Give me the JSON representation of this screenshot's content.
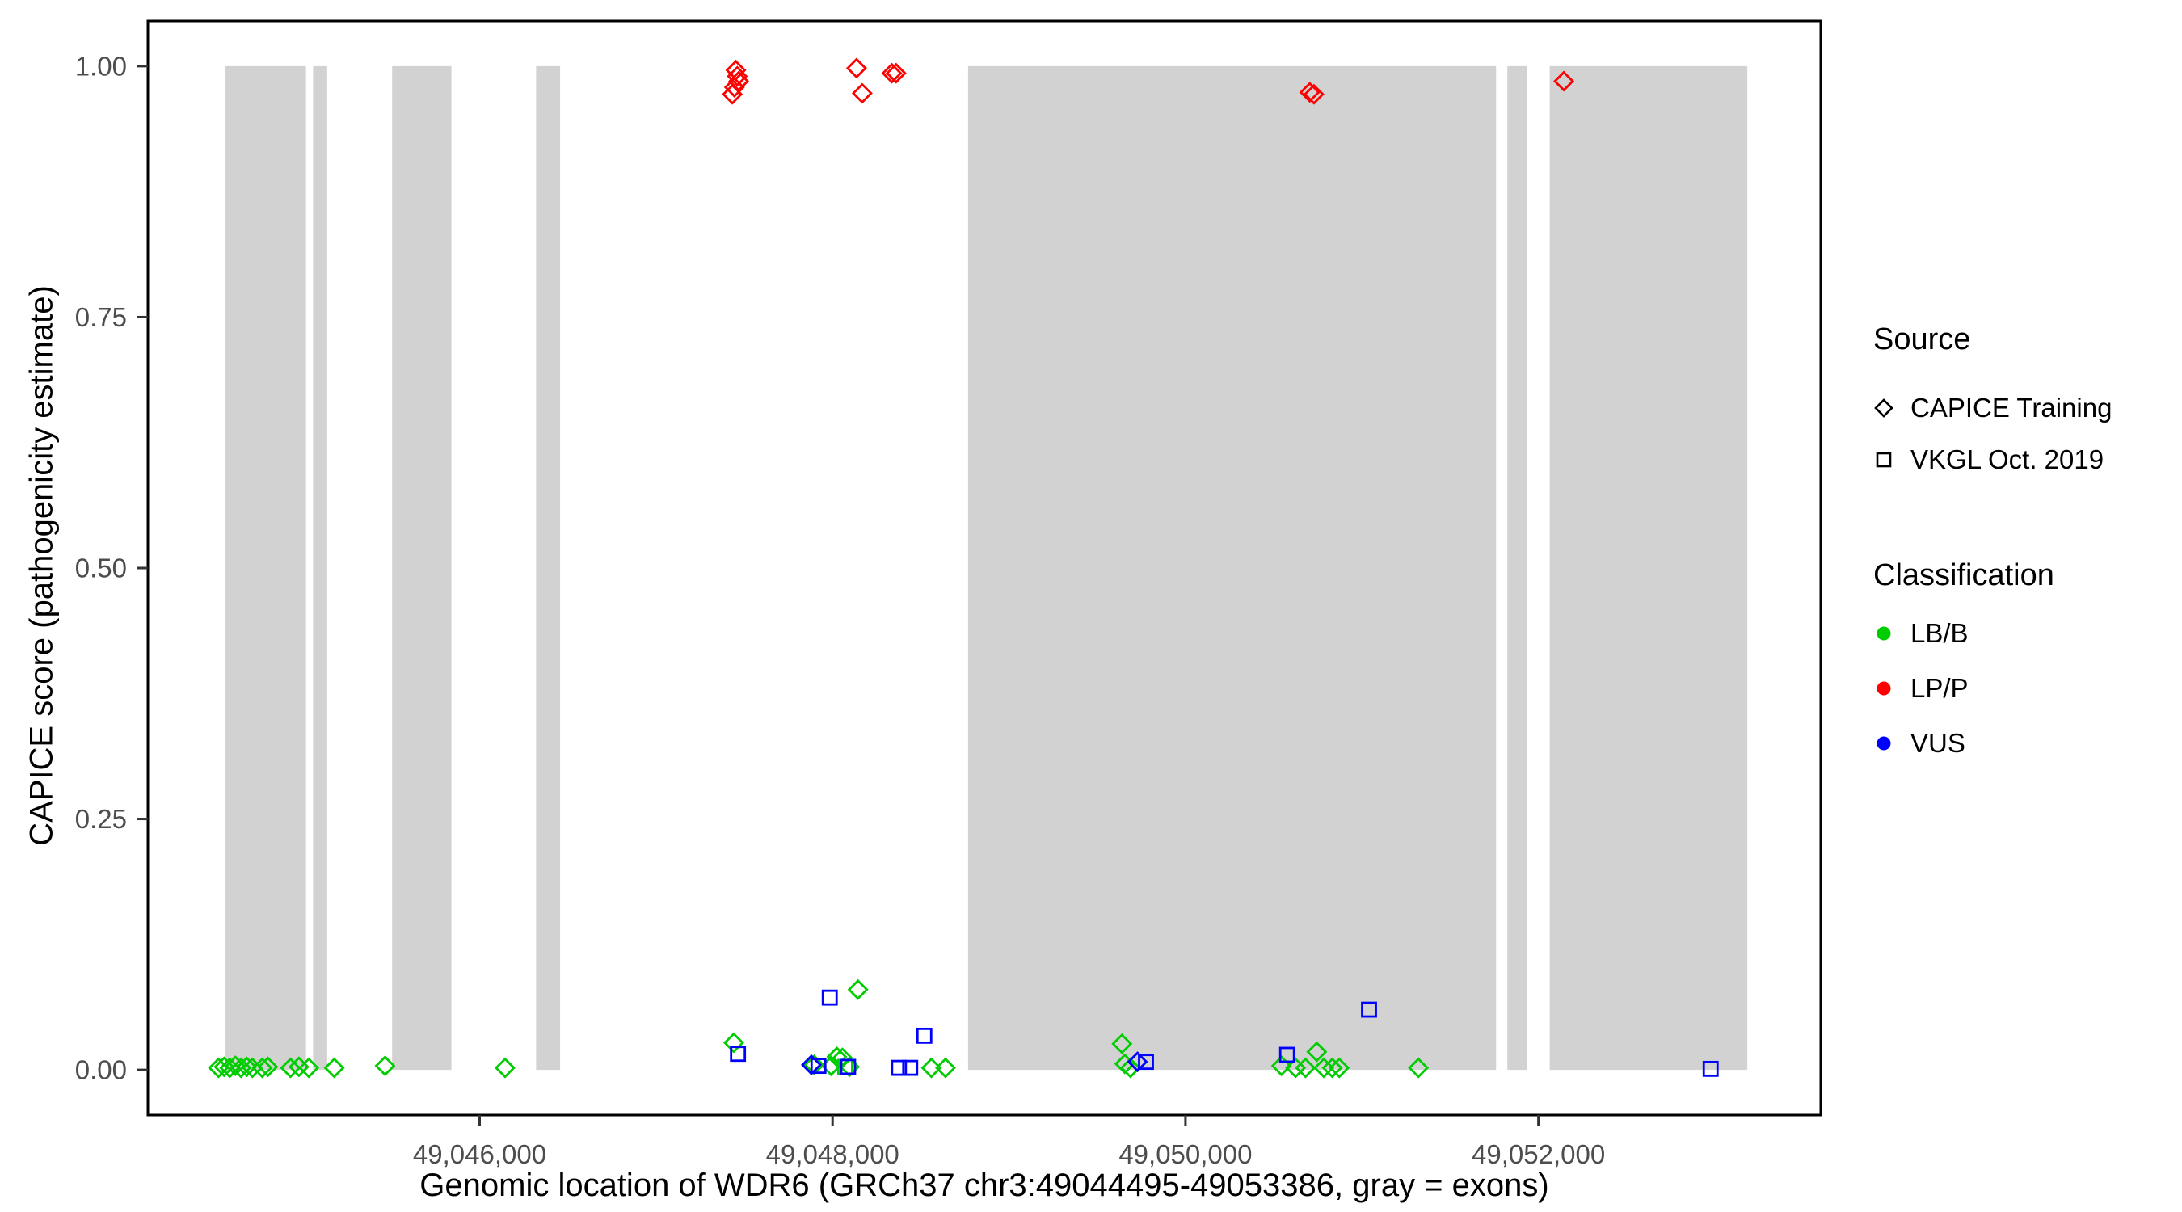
{
  "colors": {
    "LB/B": "#00CD00",
    "LP/P": "#FF0000",
    "VUS": "#0000FF",
    "exon": "#D2D2D2",
    "panel_border": "#000000",
    "tick_label": "#4D4D4D"
  },
  "legend": {
    "source": {
      "title": "Source",
      "items": [
        {
          "label": "CAPICE Training",
          "shape": "diamond"
        },
        {
          "label": "VKGL Oct. 2019",
          "shape": "square"
        }
      ]
    },
    "classification": {
      "title": "Classification",
      "items": [
        {
          "label": "LB/B",
          "color": "#00CD00"
        },
        {
          "label": "LP/P",
          "color": "#FF0000"
        },
        {
          "label": "VUS",
          "color": "#0000FF"
        }
      ]
    }
  },
  "chart_data": {
    "type": "scatter",
    "title": "",
    "xlabel": "Genomic location of WDR6 (GRCh37 chr3:49044495-49053386, gray = exons)",
    "ylabel": "CAPICE score (pathogenicity estimate)",
    "xlim": [
      49044120,
      49053600
    ],
    "ylim": [
      -0.045,
      1.045
    ],
    "grid": false,
    "legend_position": "right",
    "x_ticks": [
      {
        "value": 49046000,
        "label": "49,046,000"
      },
      {
        "value": 49048000,
        "label": "49,048,000"
      },
      {
        "value": 49050000,
        "label": "49,050,000"
      },
      {
        "value": 49052000,
        "label": "49,052,000"
      }
    ],
    "y_ticks": [
      {
        "value": 0.0,
        "label": "0.00"
      },
      {
        "value": 0.25,
        "label": "0.25"
      },
      {
        "value": 0.5,
        "label": "0.50"
      },
      {
        "value": 0.75,
        "label": "0.75"
      },
      {
        "value": 1.0,
        "label": "1.00"
      }
    ],
    "exon_band": [
      0,
      1.0
    ],
    "exons": [
      [
        49044560,
        49045016
      ],
      [
        49045056,
        49045136
      ],
      [
        49045504,
        49045840
      ],
      [
        49046320,
        49046456
      ],
      [
        49048768,
        49051760
      ],
      [
        49051824,
        49051936
      ],
      [
        49052064,
        49053184
      ]
    ],
    "shape_by_source": {
      "CAPICE Training": "diamond",
      "VKGL Oct. 2019": "square"
    },
    "points": [
      {
        "x": 49047432,
        "y": 0.972,
        "source": "CAPICE Training",
        "classification": "LP/P"
      },
      {
        "x": 49047444,
        "y": 0.979,
        "source": "CAPICE Training",
        "classification": "LP/P"
      },
      {
        "x": 49047452,
        "y": 0.996,
        "source": "CAPICE Training",
        "classification": "LP/P"
      },
      {
        "x": 49047460,
        "y": 0.99,
        "source": "CAPICE Training",
        "classification": "LP/P"
      },
      {
        "x": 49047468,
        "y": 0.985,
        "source": "CAPICE Training",
        "classification": "LP/P"
      },
      {
        "x": 49048136,
        "y": 0.998,
        "source": "CAPICE Training",
        "classification": "LP/P"
      },
      {
        "x": 49048168,
        "y": 0.973,
        "source": "CAPICE Training",
        "classification": "LP/P"
      },
      {
        "x": 49048336,
        "y": 0.993,
        "source": "CAPICE Training",
        "classification": "LP/P"
      },
      {
        "x": 49048360,
        "y": 0.993,
        "source": "CAPICE Training",
        "classification": "LP/P"
      },
      {
        "x": 49050704,
        "y": 0.974,
        "source": "CAPICE Training",
        "classification": "LP/P"
      },
      {
        "x": 49050728,
        "y": 0.972,
        "source": "CAPICE Training",
        "classification": "LP/P"
      },
      {
        "x": 49052144,
        "y": 0.985,
        "source": "CAPICE Training",
        "classification": "LP/P"
      },
      {
        "x": 49044520,
        "y": 0.002,
        "source": "CAPICE Training",
        "classification": "LB/B"
      },
      {
        "x": 49044552,
        "y": 0.003,
        "source": "CAPICE Training",
        "classification": "LB/B"
      },
      {
        "x": 49044584,
        "y": 0.002,
        "source": "CAPICE Training",
        "classification": "LB/B"
      },
      {
        "x": 49044616,
        "y": 0.004,
        "source": "CAPICE Training",
        "classification": "LB/B"
      },
      {
        "x": 49044648,
        "y": 0.002,
        "source": "CAPICE Training",
        "classification": "LB/B"
      },
      {
        "x": 49044680,
        "y": 0.003,
        "source": "CAPICE Training",
        "classification": "LB/B"
      },
      {
        "x": 49044712,
        "y": 0.002,
        "source": "CAPICE Training",
        "classification": "LB/B"
      },
      {
        "x": 49044768,
        "y": 0.002,
        "source": "CAPICE Training",
        "classification": "LB/B"
      },
      {
        "x": 49044800,
        "y": 0.003,
        "source": "CAPICE Training",
        "classification": "LB/B"
      },
      {
        "x": 49044928,
        "y": 0.002,
        "source": "CAPICE Training",
        "classification": "LB/B"
      },
      {
        "x": 49044976,
        "y": 0.003,
        "source": "CAPICE Training",
        "classification": "LB/B"
      },
      {
        "x": 49045032,
        "y": 0.002,
        "source": "CAPICE Training",
        "classification": "LB/B"
      },
      {
        "x": 49045176,
        "y": 0.002,
        "source": "CAPICE Training",
        "classification": "LB/B"
      },
      {
        "x": 49045464,
        "y": 0.004,
        "source": "CAPICE Training",
        "classification": "LB/B"
      },
      {
        "x": 49046144,
        "y": 0.002,
        "source": "CAPICE Training",
        "classification": "LB/B"
      },
      {
        "x": 49047440,
        "y": 0.027,
        "source": "CAPICE Training",
        "classification": "LB/B"
      },
      {
        "x": 49047896,
        "y": 0.005,
        "source": "CAPICE Training",
        "classification": "LB/B"
      },
      {
        "x": 49047992,
        "y": 0.004,
        "source": "CAPICE Training",
        "classification": "LB/B"
      },
      {
        "x": 49048024,
        "y": 0.013,
        "source": "CAPICE Training",
        "classification": "LB/B"
      },
      {
        "x": 49048056,
        "y": 0.012,
        "source": "CAPICE Training",
        "classification": "LB/B"
      },
      {
        "x": 49048096,
        "y": 0.003,
        "source": "CAPICE Training",
        "classification": "LB/B"
      },
      {
        "x": 49048144,
        "y": 0.08,
        "source": "CAPICE Training",
        "classification": "LB/B"
      },
      {
        "x": 49048560,
        "y": 0.002,
        "source": "CAPICE Training",
        "classification": "LB/B"
      },
      {
        "x": 49048640,
        "y": 0.002,
        "source": "CAPICE Training",
        "classification": "LB/B"
      },
      {
        "x": 49049640,
        "y": 0.026,
        "source": "CAPICE Training",
        "classification": "LB/B"
      },
      {
        "x": 49049656,
        "y": 0.006,
        "source": "CAPICE Training",
        "classification": "LB/B"
      },
      {
        "x": 49049688,
        "y": 0.002,
        "source": "CAPICE Training",
        "classification": "LB/B"
      },
      {
        "x": 49050544,
        "y": 0.004,
        "source": "CAPICE Training",
        "classification": "LB/B"
      },
      {
        "x": 49050624,
        "y": 0.002,
        "source": "CAPICE Training",
        "classification": "LB/B"
      },
      {
        "x": 49050680,
        "y": 0.002,
        "source": "CAPICE Training",
        "classification": "LB/B"
      },
      {
        "x": 49050744,
        "y": 0.018,
        "source": "CAPICE Training",
        "classification": "LB/B"
      },
      {
        "x": 49050784,
        "y": 0.002,
        "source": "CAPICE Training",
        "classification": "LB/B"
      },
      {
        "x": 49050832,
        "y": 0.002,
        "source": "CAPICE Training",
        "classification": "LB/B"
      },
      {
        "x": 49050872,
        "y": 0.002,
        "source": "CAPICE Training",
        "classification": "LB/B"
      },
      {
        "x": 49051320,
        "y": 0.002,
        "source": "CAPICE Training",
        "classification": "LB/B"
      },
      {
        "x": 49048072,
        "y": 0.003,
        "source": "VKGL Oct. 2019",
        "classification": "LB/B"
      },
      {
        "x": 49047880,
        "y": 0.005,
        "source": "CAPICE Training",
        "classification": "VUS"
      },
      {
        "x": 49049728,
        "y": 0.008,
        "source": "CAPICE Training",
        "classification": "VUS"
      },
      {
        "x": 49047464,
        "y": 0.016,
        "source": "VKGL Oct. 2019",
        "classification": "VUS"
      },
      {
        "x": 49047920,
        "y": 0.004,
        "source": "VKGL Oct. 2019",
        "classification": "VUS"
      },
      {
        "x": 49047984,
        "y": 0.072,
        "source": "VKGL Oct. 2019",
        "classification": "VUS"
      },
      {
        "x": 49048088,
        "y": 0.003,
        "source": "VKGL Oct. 2019",
        "classification": "VUS"
      },
      {
        "x": 49048376,
        "y": 0.002,
        "source": "VKGL Oct. 2019",
        "classification": "VUS"
      },
      {
        "x": 49048440,
        "y": 0.002,
        "source": "VKGL Oct. 2019",
        "classification": "VUS"
      },
      {
        "x": 49048520,
        "y": 0.034,
        "source": "VKGL Oct. 2019",
        "classification": "VUS"
      },
      {
        "x": 49049776,
        "y": 0.008,
        "source": "VKGL Oct. 2019",
        "classification": "VUS"
      },
      {
        "x": 49050576,
        "y": 0.015,
        "source": "VKGL Oct. 2019",
        "classification": "VUS"
      },
      {
        "x": 49051040,
        "y": 0.06,
        "source": "VKGL Oct. 2019",
        "classification": "VUS"
      },
      {
        "x": 49052976,
        "y": 0.001,
        "source": "VKGL Oct. 2019",
        "classification": "VUS"
      }
    ]
  }
}
